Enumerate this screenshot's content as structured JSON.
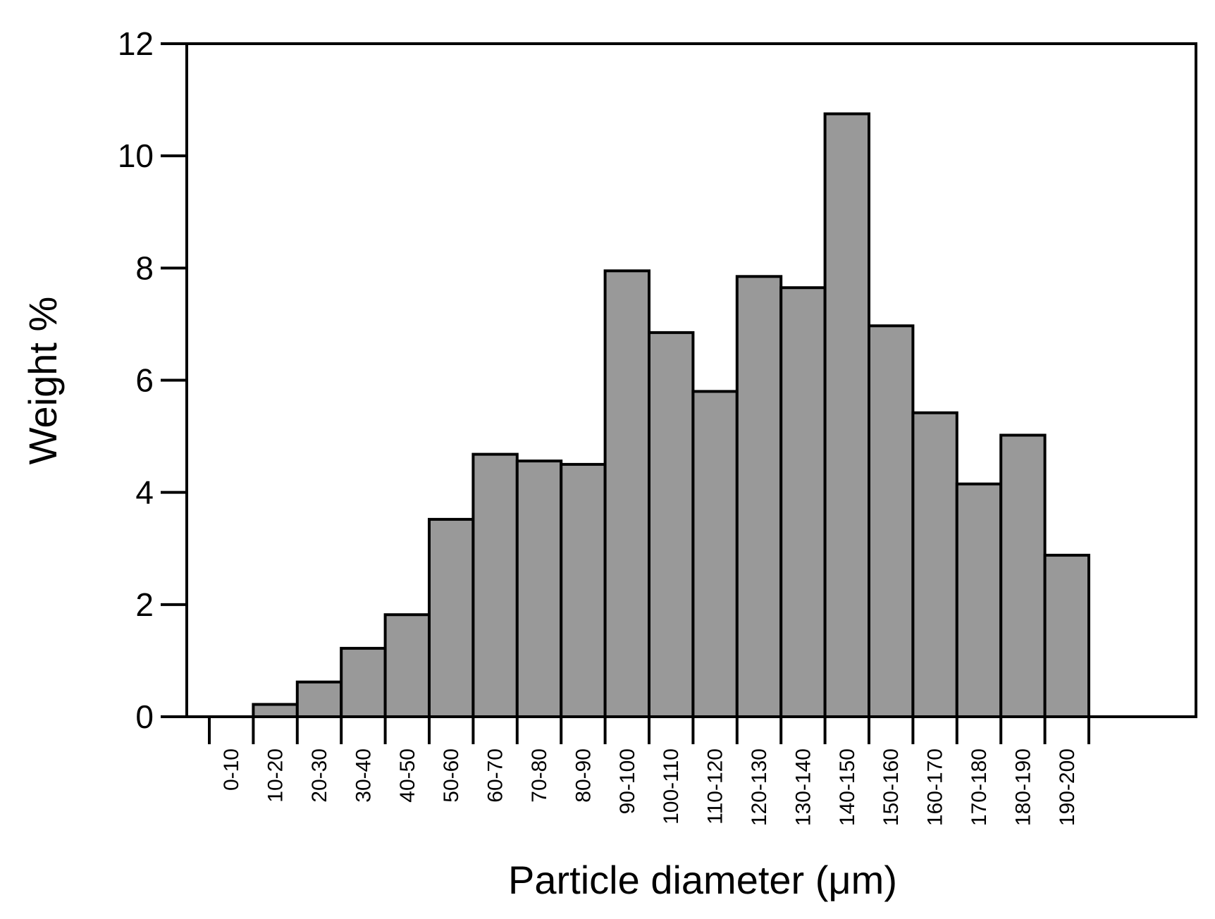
{
  "chart_data": {
    "type": "bar",
    "title": "",
    "xlabel": "Particle diameter (μm)",
    "ylabel": "Weight %",
    "ylim": [
      0,
      12
    ],
    "yticks": [
      "0",
      "2",
      "4",
      "6",
      "8",
      "10",
      "12"
    ],
    "grid": false,
    "categories": [
      "0-10",
      "10-20",
      "20-30",
      "30-40",
      "40-50",
      "50-60",
      "60-70",
      "70-80",
      "80-90",
      "90-100",
      "100-110",
      "110-120",
      "120-130",
      "130-140",
      "140-150",
      "150-160",
      "160-170",
      "170-180",
      "180-190",
      "190-200"
    ],
    "values": [
      0,
      0.22,
      0.62,
      1.22,
      1.82,
      3.52,
      4.68,
      4.56,
      4.5,
      7.95,
      6.85,
      5.8,
      7.85,
      7.65,
      10.75,
      6.97,
      5.42,
      4.15,
      5.02,
      2.88
    ],
    "colors": {
      "bar_fill": "#999999",
      "bar_stroke": "#000000",
      "axis": "#000000"
    }
  }
}
